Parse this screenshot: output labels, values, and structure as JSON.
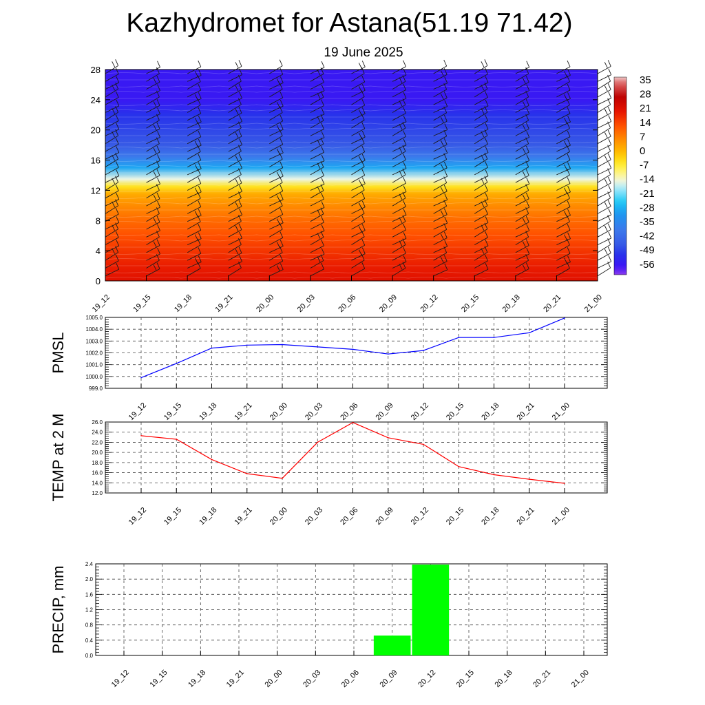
{
  "header": {
    "title": "Kazhydromet for Astana(51.19 71.42)",
    "subtitle": "19 June 2025"
  },
  "chart_data": [
    {
      "type": "heatmap",
      "y_ticks": [
        "0",
        "4",
        "8",
        "12",
        "16",
        "20",
        "24",
        "28"
      ],
      "ylim": [
        0,
        28
      ],
      "x_ticks": [
        "19_12",
        "19_15",
        "19_18",
        "19_21",
        "20_00",
        "20_03",
        "20_06",
        "20_09",
        "20_12",
        "20_15",
        "20_18",
        "20_21",
        "21_00"
      ],
      "colorbar": {
        "labels": [
          "35",
          "28",
          "21",
          "14",
          "7",
          "0",
          "-7",
          "-14",
          "-21",
          "-28",
          "-35",
          "-42",
          "-49",
          "-56"
        ],
        "range": [
          -60,
          38
        ]
      },
      "temperature_profile": [
        {
          "level": 0,
          "value": 22
        },
        {
          "level": 2,
          "value": 20
        },
        {
          "level": 4,
          "value": 17
        },
        {
          "level": 6,
          "value": 14
        },
        {
          "level": 8,
          "value": 11
        },
        {
          "level": 10,
          "value": 7
        },
        {
          "level": 11.5,
          "value": 3
        },
        {
          "level": 12.5,
          "value": -4
        },
        {
          "level": 13.5,
          "value": -14
        },
        {
          "level": 15,
          "value": -28
        },
        {
          "level": 16.5,
          "value": -38
        },
        {
          "level": 18,
          "value": -45
        },
        {
          "level": 22,
          "value": -50
        },
        {
          "level": 24,
          "value": -55
        },
        {
          "level": 28,
          "value": -55
        }
      ],
      "wind_barbs": true,
      "grid": false
    },
    {
      "type": "line",
      "ylabel": "PMSL",
      "ylim": [
        999.0,
        1005.0
      ],
      "y_ticks": [
        "999.0",
        "1000.0",
        "1001.0",
        "1002.0",
        "1003.0",
        "1004.0",
        "1005.0"
      ],
      "categories": [
        "19_12",
        "19_15",
        "19_18",
        "19_21",
        "20_00",
        "20_03",
        "20_06",
        "20_09",
        "20_12",
        "20_15",
        "20_18",
        "20_21",
        "21_00"
      ],
      "values": [
        999.9,
        1001.1,
        1002.4,
        1002.65,
        1002.7,
        1002.5,
        1002.3,
        1001.9,
        1002.2,
        1003.3,
        1003.3,
        1003.7,
        1004.95
      ],
      "color": "#0000ff",
      "grid": true
    },
    {
      "type": "line",
      "ylabel": "TEMP at 2 M",
      "ylim": [
        12.0,
        26.0
      ],
      "y_ticks": [
        "12.0",
        "14.0",
        "16.0",
        "18.0",
        "20.0",
        "22.0",
        "24.0",
        "26.0"
      ],
      "categories": [
        "19_12",
        "19_15",
        "19_18",
        "19_21",
        "20_00",
        "20_03",
        "20_06",
        "20_09",
        "20_12",
        "20_15",
        "20_18",
        "20_21",
        "21_00"
      ],
      "values": [
        23.3,
        22.6,
        18.6,
        15.8,
        14.9,
        22.0,
        25.9,
        22.9,
        21.6,
        17.2,
        15.6,
        14.7,
        13.9
      ],
      "color": "#ff0000",
      "grid": true
    },
    {
      "type": "bar",
      "ylabel": "PRECIP, mm",
      "ylim": [
        0.0,
        2.4
      ],
      "y_ticks": [
        "0.0",
        "0.4",
        "0.8",
        "1.2",
        "1.6",
        "2.0",
        "2.4"
      ],
      "categories": [
        "19_12",
        "19_15",
        "19_18",
        "19_21",
        "20_00",
        "20_03",
        "20_06",
        "20_09",
        "20_12",
        "20_15",
        "20_18",
        "20_21",
        "21_00"
      ],
      "values": [
        0,
        0,
        0,
        0,
        0,
        0,
        0,
        0.52,
        2.38,
        0,
        0,
        0,
        0
      ],
      "color": "#00ff00",
      "grid": true
    }
  ]
}
